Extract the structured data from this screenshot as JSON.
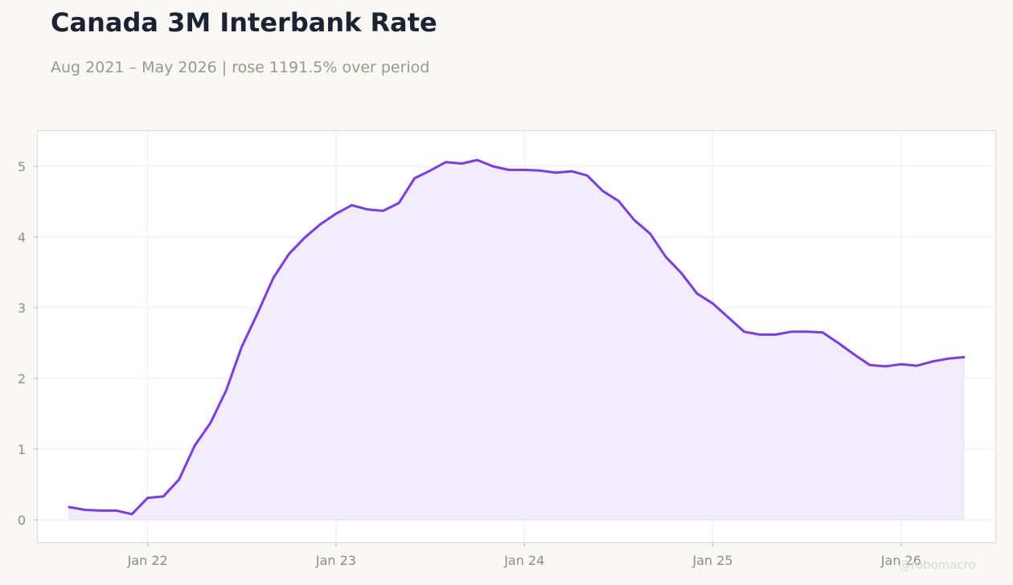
{
  "title": "Canada 3M Interbank Rate",
  "subtitle": "Aug 2021 – May 2026 | rose 1191.5% over period",
  "watermark": "@robomacro",
  "colors": {
    "line": "#7c3aed",
    "fill": "#f2edfd",
    "background": "#f9f8f5",
    "plot_background": "#ffffff"
  },
  "chart_data": {
    "type": "area",
    "title": "Canada 3M Interbank Rate",
    "subtitle": "Aug 2021 – May 2026 | rose 1191.5% over period",
    "xlabel": "",
    "ylabel": "",
    "x_tick_labels": [
      "Jan 22",
      "Jan 23",
      "Jan 24",
      "Jan 25",
      "Jan 26"
    ],
    "x_tick_dates": [
      "2022-01",
      "2023-01",
      "2024-01",
      "2025-01",
      "2026-01"
    ],
    "y_ticks": [
      0,
      1,
      2,
      3,
      4,
      5
    ],
    "ylim": [
      -0.32,
      5.5
    ],
    "xlim": [
      "2021-06",
      "2026-07"
    ],
    "grid": true,
    "legend": "none",
    "series": [
      {
        "x": [
          "2021-08",
          "2021-09",
          "2021-10",
          "2021-11",
          "2021-12",
          "2022-01",
          "2022-02",
          "2022-03",
          "2022-04",
          "2022-05",
          "2022-06",
          "2022-07",
          "2022-08",
          "2022-09",
          "2022-10",
          "2022-11",
          "2022-12",
          "2023-01",
          "2023-02",
          "2023-03",
          "2023-04",
          "2023-05",
          "2023-06",
          "2023-07",
          "2023-08",
          "2023-09",
          "2023-10",
          "2023-11",
          "2023-12",
          "2024-01",
          "2024-02",
          "2024-03",
          "2024-04",
          "2024-05",
          "2024-06",
          "2024-07",
          "2024-08",
          "2024-09",
          "2024-10",
          "2024-11",
          "2024-12",
          "2025-01",
          "2025-02",
          "2025-03",
          "2025-04",
          "2025-05",
          "2025-06",
          "2025-07",
          "2025-08",
          "2025-09",
          "2025-10",
          "2025-11",
          "2025-12",
          "2026-01",
          "2026-02",
          "2026-03",
          "2026-04",
          "2026-05"
        ],
        "values": [
          0.18,
          0.14,
          0.13,
          0.13,
          0.08,
          0.31,
          0.33,
          0.57,
          1.05,
          1.37,
          1.83,
          2.45,
          2.92,
          3.42,
          3.76,
          3.99,
          4.18,
          4.33,
          4.45,
          4.39,
          4.37,
          4.48,
          4.83,
          4.94,
          5.06,
          5.04,
          5.09,
          5.0,
          4.95,
          4.95,
          4.94,
          4.91,
          4.93,
          4.87,
          4.65,
          4.51,
          4.24,
          4.05,
          3.72,
          3.49,
          3.2,
          3.06,
          2.86,
          2.66,
          2.62,
          2.62,
          2.66,
          2.66,
          2.65,
          2.5,
          2.34,
          2.19,
          2.17,
          2.2,
          2.18,
          2.24,
          2.28,
          2.3
        ]
      }
    ]
  }
}
